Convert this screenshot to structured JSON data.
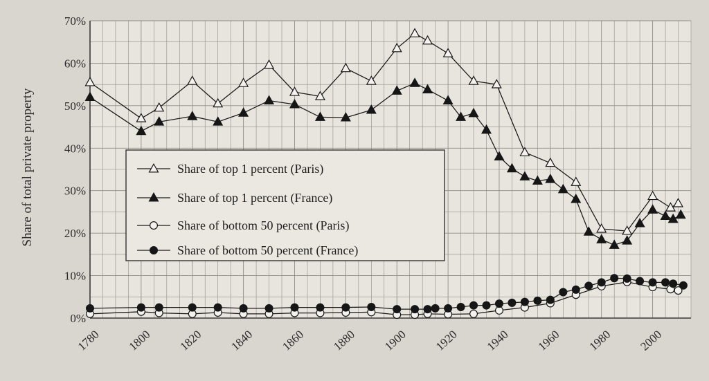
{
  "chart_data": {
    "type": "line",
    "title": "",
    "xlabel": "",
    "ylabel": "Share of total private property",
    "xlim": [
      1780,
      2015
    ],
    "ylim": [
      0,
      70
    ],
    "x_ticks": [
      "1780",
      "1800",
      "1820",
      "1840",
      "1860",
      "1880",
      "1900",
      "1920",
      "1940",
      "1960",
      "1980",
      "2000"
    ],
    "y_ticks": [
      "0%",
      "10%",
      "20%",
      "30%",
      "40%",
      "50%",
      "60%",
      "70%"
    ],
    "grid": true,
    "legend_position": "center-left",
    "series": [
      {
        "name": "Share of top 1 percent (Paris)",
        "marker": "open-triangle",
        "x": [
          1780,
          1800,
          1807,
          1820,
          1830,
          1840,
          1850,
          1860,
          1870,
          1880,
          1890,
          1900,
          1907,
          1912,
          1920,
          1930,
          1939,
          1950,
          1960,
          1970,
          1980,
          1990,
          2000,
          2007,
          2010
        ],
        "y": [
          55.5,
          47,
          49.5,
          55.8,
          50.5,
          55.3,
          59.6,
          53.2,
          52.2,
          58.8,
          55.8,
          63.5,
          67,
          65.3,
          62.3,
          55.8,
          55,
          39,
          36.5,
          32,
          21,
          20.5,
          28.7,
          26,
          27
        ]
      },
      {
        "name": "Share of top 1 percent (France)",
        "marker": "filled-triangle",
        "x": [
          1780,
          1800,
          1807,
          1820,
          1830,
          1840,
          1850,
          1860,
          1870,
          1880,
          1890,
          1900,
          1907,
          1912,
          1920,
          1925,
          1930,
          1935,
          1940,
          1945,
          1950,
          1955,
          1960,
          1965,
          1970,
          1975,
          1980,
          1985,
          1990,
          1995,
          2000,
          2005,
          2008,
          2011
        ],
        "y": [
          52,
          44,
          46.2,
          47.5,
          46.2,
          48.3,
          51.2,
          50.3,
          47.3,
          47.2,
          49,
          53.5,
          55.3,
          53.8,
          51.2,
          47.3,
          48.2,
          44.3,
          38,
          35.2,
          33.3,
          32.3,
          32.7,
          30.3,
          28,
          20.3,
          18.5,
          17.2,
          18.2,
          22.3,
          25.5,
          24,
          23.3,
          24.3
        ]
      },
      {
        "name": "Share of bottom 50 percent (Paris)",
        "marker": "open-circle",
        "x": [
          1780,
          1800,
          1807,
          1820,
          1830,
          1840,
          1850,
          1860,
          1870,
          1880,
          1890,
          1900,
          1907,
          1912,
          1920,
          1930,
          1940,
          1950,
          1960,
          1970,
          1980,
          1990,
          2000,
          2007,
          2010
        ],
        "y": [
          1,
          1.5,
          1.2,
          1,
          1.3,
          1,
          1,
          1.2,
          1.2,
          1.3,
          1.4,
          0.8,
          0.8,
          1,
          0.9,
          1,
          1.8,
          2.5,
          3.5,
          5.5,
          7.5,
          8.5,
          7.3,
          6.8,
          6.5
        ]
      },
      {
        "name": "Share of bottom 50 percent (France)",
        "marker": "filled-circle",
        "x": [
          1780,
          1800,
          1807,
          1820,
          1830,
          1840,
          1850,
          1860,
          1870,
          1880,
          1890,
          1900,
          1907,
          1912,
          1915,
          1920,
          1925,
          1930,
          1935,
          1940,
          1945,
          1950,
          1955,
          1960,
          1965,
          1970,
          1975,
          1980,
          1985,
          1990,
          1995,
          2000,
          2005,
          2008,
          2012
        ],
        "y": [
          2.3,
          2.5,
          2.5,
          2.5,
          2.5,
          2.3,
          2.3,
          2.5,
          2.5,
          2.5,
          2.6,
          2.1,
          2.1,
          2.1,
          2.3,
          2.3,
          2.6,
          3,
          3,
          3.4,
          3.6,
          3.8,
          4.1,
          4.3,
          6.1,
          6.7,
          7.6,
          8.4,
          9.4,
          9.3,
          8.7,
          8.4,
          8.4,
          8.1,
          7.7
        ]
      }
    ]
  }
}
